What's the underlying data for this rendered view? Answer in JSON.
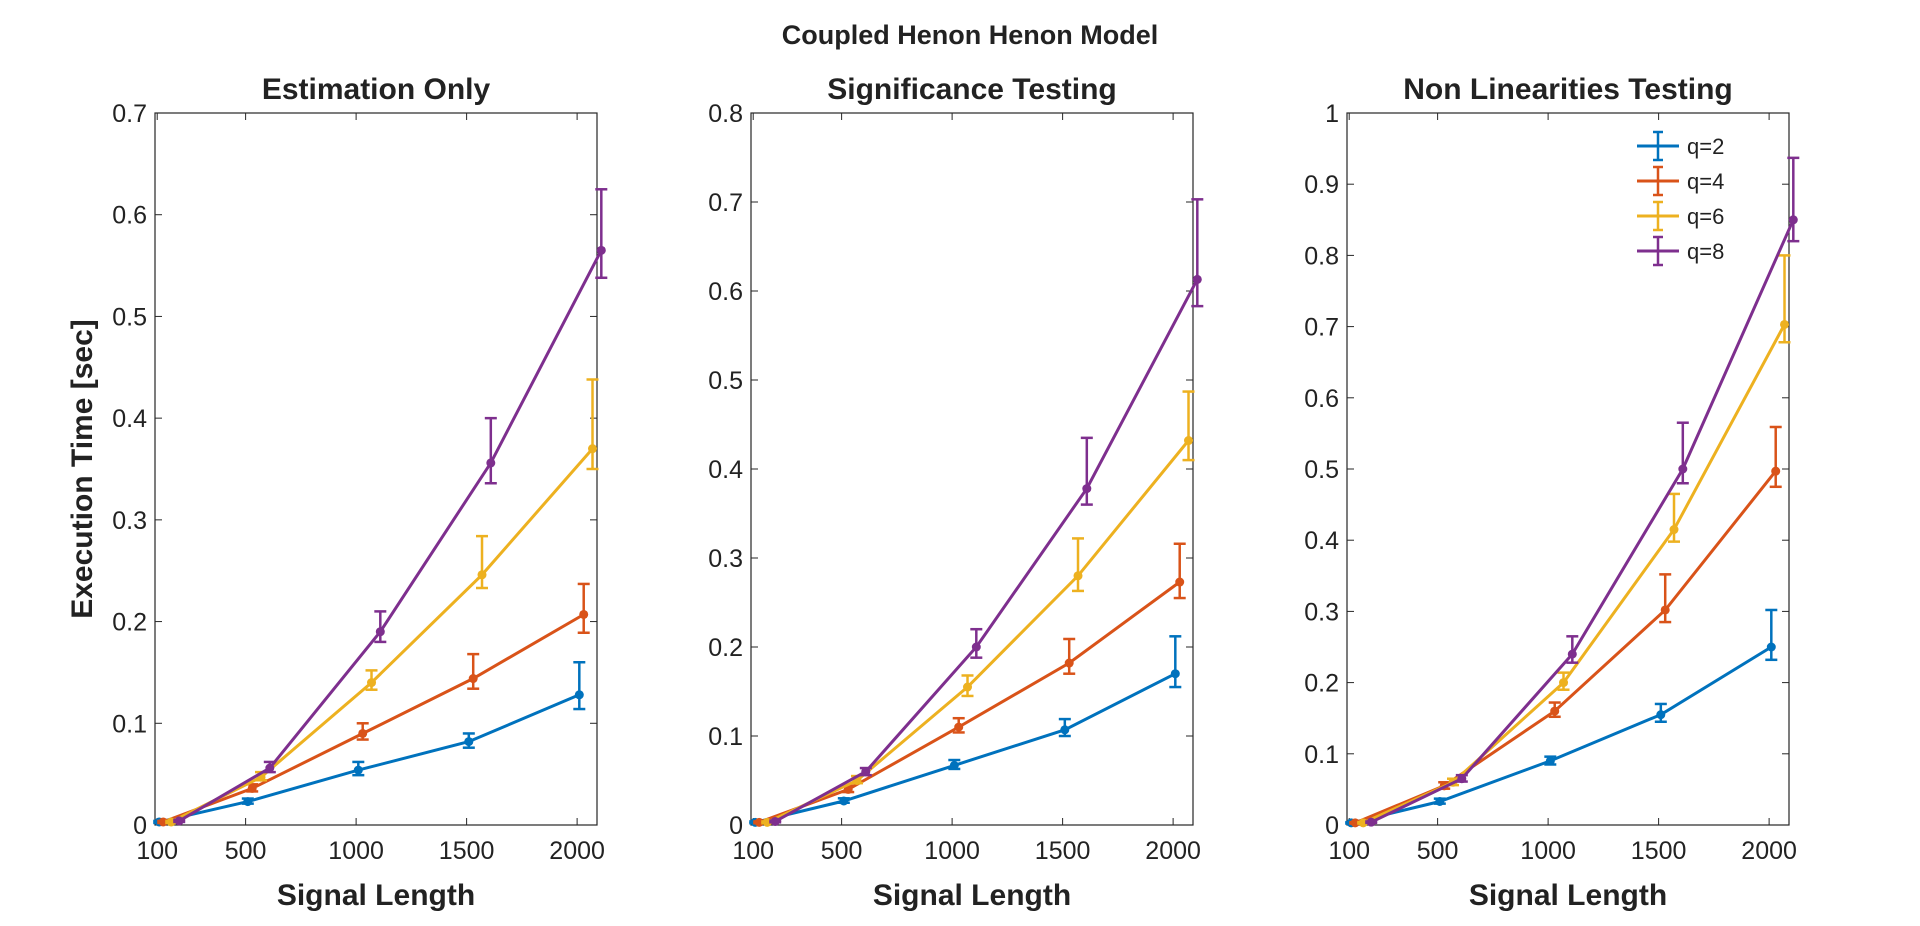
{
  "figure_title": "Coupled Henon Henon Model",
  "chart_data": [
    {
      "type": "line",
      "title": "Estimation Only",
      "xlabel": "Signal Length",
      "ylabel": "Execution Time [sec]",
      "xlim": [
        90,
        2090
      ],
      "ylim": [
        0,
        0.7
      ],
      "xticks": [
        100,
        500,
        1000,
        1500,
        2000
      ],
      "yticks": [
        0,
        0.1,
        0.2,
        0.3,
        0.4,
        0.5,
        0.6,
        0.7
      ],
      "ytick_labels": [
        "0",
        "0.1",
        "0.2",
        "0.3",
        "0.4",
        "0.5",
        "0.6",
        "0.7"
      ],
      "series": [
        {
          "name": "q=2",
          "color": "#0072BD",
          "x": [
            100,
            500,
            1000,
            1500,
            2000
          ],
          "y": [
            0.003,
            0.023,
            0.054,
            0.082,
            0.128
          ],
          "err_low": [
            0.001,
            0.002,
            0.005,
            0.006,
            0.014
          ],
          "err_high": [
            0.001,
            0.003,
            0.008,
            0.008,
            0.032
          ]
        },
        {
          "name": "q=4",
          "color": "#D95319",
          "x": [
            100,
            500,
            1000,
            1500,
            2000
          ],
          "y": [
            0.003,
            0.036,
            0.09,
            0.144,
            0.207
          ],
          "err_low": [
            0.001,
            0.003,
            0.006,
            0.01,
            0.018
          ],
          "err_high": [
            0.001,
            0.004,
            0.01,
            0.024,
            0.03
          ]
        },
        {
          "name": "q=6",
          "color": "#EDB120",
          "x": [
            100,
            500,
            1000,
            1500,
            2000
          ],
          "y": [
            0.003,
            0.047,
            0.14,
            0.246,
            0.37
          ],
          "err_low": [
            0.001,
            0.003,
            0.007,
            0.013,
            0.02
          ],
          "err_high": [
            0.001,
            0.005,
            0.012,
            0.038,
            0.068
          ]
        },
        {
          "name": "q=8",
          "color": "#7E2F8E",
          "x": [
            100,
            500,
            1000,
            1500,
            2000
          ],
          "y": [
            0.004,
            0.056,
            0.19,
            0.356,
            0.565
          ],
          "err_low": [
            0.001,
            0.004,
            0.01,
            0.02,
            0.027
          ],
          "err_high": [
            0.001,
            0.006,
            0.02,
            0.044,
            0.06
          ]
        }
      ]
    },
    {
      "type": "line",
      "title": "Significance Testing",
      "xlabel": "Signal Length",
      "ylabel": "",
      "xlim": [
        90,
        2090
      ],
      "ylim": [
        0,
        0.8
      ],
      "xticks": [
        100,
        500,
        1000,
        1500,
        2000
      ],
      "yticks": [
        0,
        0.1,
        0.2,
        0.3,
        0.4,
        0.5,
        0.6,
        0.7,
        0.8
      ],
      "ytick_labels": [
        "0",
        "0.1",
        "0.2",
        "0.3",
        "0.4",
        "0.5",
        "0.6",
        "0.7",
        "0.8"
      ],
      "series": [
        {
          "name": "q=2",
          "color": "#0072BD",
          "x": [
            100,
            500,
            1000,
            1500,
            2000
          ],
          "y": [
            0.003,
            0.027,
            0.067,
            0.107,
            0.17
          ],
          "err_low": [
            0.001,
            0.002,
            0.004,
            0.007,
            0.015
          ],
          "err_high": [
            0.001,
            0.003,
            0.006,
            0.012,
            0.042
          ]
        },
        {
          "name": "q=4",
          "color": "#D95319",
          "x": [
            100,
            500,
            1000,
            1500,
            2000
          ],
          "y": [
            0.003,
            0.04,
            0.11,
            0.182,
            0.273
          ],
          "err_low": [
            0.001,
            0.003,
            0.006,
            0.012,
            0.018
          ],
          "err_high": [
            0.001,
            0.004,
            0.01,
            0.027,
            0.043
          ]
        },
        {
          "name": "q=6",
          "color": "#EDB120",
          "x": [
            100,
            500,
            1000,
            1500,
            2000
          ],
          "y": [
            0.003,
            0.05,
            0.155,
            0.28,
            0.432
          ],
          "err_low": [
            0.001,
            0.003,
            0.01,
            0.017,
            0.022
          ],
          "err_high": [
            0.001,
            0.005,
            0.013,
            0.042,
            0.055
          ]
        },
        {
          "name": "q=8",
          "color": "#7E2F8E",
          "x": [
            100,
            500,
            1000,
            1500,
            2000
          ],
          "y": [
            0.004,
            0.06,
            0.2,
            0.378,
            0.613
          ],
          "err_low": [
            0.001,
            0.004,
            0.012,
            0.018,
            0.03
          ],
          "err_high": [
            0.001,
            0.004,
            0.02,
            0.057,
            0.09
          ]
        }
      ]
    },
    {
      "type": "line",
      "title": "Non Linearities Testing",
      "xlabel": "Signal Length",
      "ylabel": "",
      "xlim": [
        90,
        2090
      ],
      "ylim": [
        0,
        1
      ],
      "xticks": [
        100,
        500,
        1000,
        1500,
        2000
      ],
      "yticks": [
        0,
        0.1,
        0.2,
        0.3,
        0.4,
        0.5,
        0.6,
        0.7,
        0.8,
        0.9,
        1
      ],
      "ytick_labels": [
        "0",
        "0.1",
        "0.2",
        "0.3",
        "0.4",
        "0.5",
        "0.6",
        "0.7",
        "0.8",
        "0.9",
        "1"
      ],
      "legend": "top-right",
      "series": [
        {
          "name": "q=2",
          "color": "#0072BD",
          "x": [
            100,
            500,
            1000,
            1500,
            2000
          ],
          "y": [
            0.003,
            0.033,
            0.09,
            0.155,
            0.25
          ],
          "err_low": [
            0.001,
            0.003,
            0.005,
            0.01,
            0.018
          ],
          "err_high": [
            0.001,
            0.004,
            0.006,
            0.015,
            0.052
          ]
        },
        {
          "name": "q=4",
          "color": "#D95319",
          "x": [
            100,
            500,
            1000,
            1500,
            2000
          ],
          "y": [
            0.003,
            0.055,
            0.16,
            0.302,
            0.497
          ],
          "err_low": [
            0.001,
            0.004,
            0.008,
            0.017,
            0.022
          ],
          "err_high": [
            0.001,
            0.005,
            0.012,
            0.05,
            0.062
          ]
        },
        {
          "name": "q=6",
          "color": "#EDB120",
          "x": [
            100,
            500,
            1000,
            1500,
            2000
          ],
          "y": [
            0.003,
            0.06,
            0.2,
            0.415,
            0.703
          ],
          "err_low": [
            0.001,
            0.004,
            0.01,
            0.017,
            0.025
          ],
          "err_high": [
            0.001,
            0.005,
            0.014,
            0.05,
            0.097
          ]
        },
        {
          "name": "q=8",
          "color": "#7E2F8E",
          "x": [
            100,
            500,
            1000,
            1500,
            2000
          ],
          "y": [
            0.004,
            0.065,
            0.24,
            0.5,
            0.85
          ],
          "err_low": [
            0.001,
            0.004,
            0.012,
            0.02,
            0.03
          ],
          "err_high": [
            0.001,
            0.005,
            0.025,
            0.065,
            0.087
          ]
        }
      ]
    }
  ]
}
